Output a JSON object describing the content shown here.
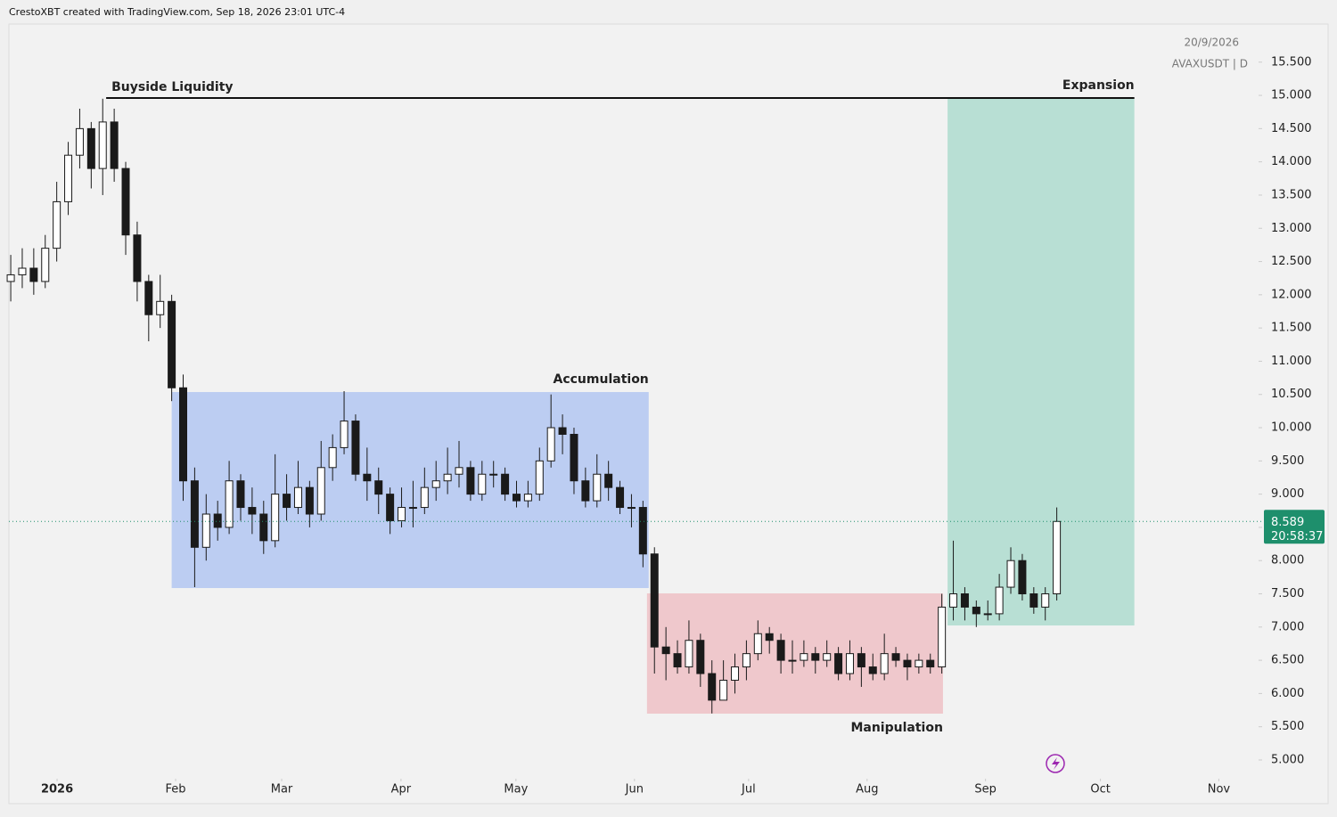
{
  "header": {
    "credit": "CrestoXBT created with TradingView.com, Sep 18, 2026 23:01 UTC-4",
    "date": "20/9/2026",
    "symbol": "AVAXUSDT | D"
  },
  "chart_data": {
    "type": "candlestick",
    "up_color": "#ffffff",
    "down_color": "#1a1a1a",
    "wick_color": "#1a1a1a",
    "xlim": [
      -0.16,
      108.4
    ],
    "xticks": [
      {
        "value": 4.03,
        "label": "2026"
      },
      {
        "value": 14.34,
        "label": "Feb"
      },
      {
        "value": 23.57,
        "label": "Mar"
      },
      {
        "value": 33.95,
        "label": "Apr"
      },
      {
        "value": 43.95,
        "label": "May"
      },
      {
        "value": 54.26,
        "label": "Jun"
      },
      {
        "value": 64.19,
        "label": "Jul"
      },
      {
        "value": 74.5,
        "label": "Aug"
      },
      {
        "value": 84.8,
        "label": "Sep"
      },
      {
        "value": 94.8,
        "label": "Oct"
      },
      {
        "value": 105.1,
        "label": "Nov"
      }
    ],
    "ylim": [
      4.705,
      16.06
    ],
    "yticks": [
      {
        "value": 5,
        "label": "5.000"
      },
      {
        "value": 5.5,
        "label": "5.500"
      },
      {
        "value": 6,
        "label": "6.000"
      },
      {
        "value": 6.5,
        "label": "6.500"
      },
      {
        "value": 7,
        "label": "7.000"
      },
      {
        "value": 7.5,
        "label": "7.500"
      },
      {
        "value": 8,
        "label": "8.000"
      },
      {
        "value": 8.5,
        "label": "8.500"
      },
      {
        "value": 9,
        "label": "9.000"
      },
      {
        "value": 9.5,
        "label": "9.500"
      },
      {
        "value": 10,
        "label": "10.000"
      },
      {
        "value": 10.5,
        "label": "10.500"
      },
      {
        "value": 11,
        "label": "11.000"
      },
      {
        "value": 11.5,
        "label": "11.500"
      },
      {
        "value": 12,
        "label": "12.000"
      },
      {
        "value": 12.5,
        "label": "12.500"
      },
      {
        "value": 13,
        "label": "13.000"
      },
      {
        "value": 13.5,
        "label": "13.500"
      },
      {
        "value": 14,
        "label": "14.000"
      },
      {
        "value": 14.5,
        "label": "14.500"
      },
      {
        "value": 15,
        "label": "15.000"
      },
      {
        "value": 15.5,
        "label": "15.500"
      }
    ],
    "ohlc": [
      [
        12.2,
        12.6,
        11.9,
        12.3
      ],
      [
        12.3,
        12.7,
        12.1,
        12.4
      ],
      [
        12.4,
        12.7,
        12.0,
        12.2
      ],
      [
        12.2,
        12.9,
        12.1,
        12.7
      ],
      [
        12.7,
        13.7,
        12.5,
        13.4
      ],
      [
        13.4,
        14.3,
        13.2,
        14.1
      ],
      [
        14.1,
        14.8,
        13.9,
        14.5
      ],
      [
        14.5,
        14.6,
        13.6,
        13.9
      ],
      [
        13.9,
        14.95,
        13.5,
        14.6
      ],
      [
        14.6,
        14.8,
        13.7,
        13.9
      ],
      [
        13.9,
        14.0,
        12.6,
        12.9
      ],
      [
        12.9,
        13.1,
        11.9,
        12.2
      ],
      [
        12.2,
        12.3,
        11.3,
        11.7
      ],
      [
        11.7,
        12.3,
        11.5,
        11.9
      ],
      [
        11.9,
        12.0,
        10.4,
        10.6
      ],
      [
        10.6,
        10.8,
        8.9,
        9.2
      ],
      [
        9.2,
        9.4,
        7.6,
        8.2
      ],
      [
        8.2,
        9.0,
        8.0,
        8.7
      ],
      [
        8.7,
        8.9,
        8.3,
        8.5
      ],
      [
        8.5,
        9.5,
        8.4,
        9.2
      ],
      [
        9.2,
        9.3,
        8.6,
        8.8
      ],
      [
        8.8,
        9.1,
        8.4,
        8.7
      ],
      [
        8.7,
        8.9,
        8.1,
        8.3
      ],
      [
        8.3,
        9.6,
        8.2,
        9.0
      ],
      [
        9.0,
        9.3,
        8.6,
        8.8
      ],
      [
        8.8,
        9.5,
        8.7,
        9.1
      ],
      [
        9.1,
        9.2,
        8.5,
        8.7
      ],
      [
        8.7,
        9.8,
        8.6,
        9.4
      ],
      [
        9.4,
        9.9,
        9.2,
        9.7
      ],
      [
        9.7,
        10.55,
        9.6,
        10.1
      ],
      [
        10.1,
        10.2,
        9.2,
        9.3
      ],
      [
        9.3,
        9.7,
        8.9,
        9.2
      ],
      [
        9.2,
        9.4,
        8.7,
        9.0
      ],
      [
        9.0,
        9.1,
        8.4,
        8.6
      ],
      [
        8.6,
        9.1,
        8.5,
        8.8
      ],
      [
        8.8,
        9.2,
        8.5,
        8.8
      ],
      [
        8.8,
        9.4,
        8.7,
        9.1
      ],
      [
        9.1,
        9.5,
        8.9,
        9.2
      ],
      [
        9.2,
        9.7,
        9.0,
        9.3
      ],
      [
        9.3,
        9.8,
        9.1,
        9.4
      ],
      [
        9.4,
        9.5,
        8.9,
        9.0
      ],
      [
        9.0,
        9.5,
        8.9,
        9.3
      ],
      [
        9.3,
        9.5,
        9.1,
        9.3
      ],
      [
        9.3,
        9.4,
        8.9,
        9.0
      ],
      [
        9.0,
        9.2,
        8.8,
        8.9
      ],
      [
        8.9,
        9.2,
        8.8,
        9.0
      ],
      [
        9.0,
        9.7,
        8.9,
        9.5
      ],
      [
        9.5,
        10.5,
        9.4,
        10.0
      ],
      [
        10.0,
        10.2,
        9.6,
        9.9
      ],
      [
        9.9,
        10.0,
        9.0,
        9.2
      ],
      [
        9.2,
        9.4,
        8.8,
        8.9
      ],
      [
        8.9,
        9.6,
        8.8,
        9.3
      ],
      [
        9.3,
        9.5,
        8.9,
        9.1
      ],
      [
        9.1,
        9.2,
        8.7,
        8.8
      ],
      [
        8.8,
        9.0,
        8.5,
        8.8
      ],
      [
        8.8,
        8.9,
        7.9,
        8.1
      ],
      [
        8.1,
        8.2,
        6.3,
        6.7
      ],
      [
        6.7,
        7.0,
        6.2,
        6.6
      ],
      [
        6.6,
        6.8,
        6.3,
        6.4
      ],
      [
        6.4,
        7.1,
        6.3,
        6.8
      ],
      [
        6.8,
        6.9,
        6.1,
        6.3
      ],
      [
        6.3,
        6.5,
        5.7,
        5.9
      ],
      [
        5.9,
        6.5,
        5.9,
        6.2
      ],
      [
        6.2,
        6.6,
        6.0,
        6.4
      ],
      [
        6.4,
        6.8,
        6.2,
        6.6
      ],
      [
        6.6,
        7.1,
        6.5,
        6.9
      ],
      [
        6.9,
        7.0,
        6.6,
        6.8
      ],
      [
        6.8,
        6.9,
        6.3,
        6.5
      ],
      [
        6.5,
        6.8,
        6.3,
        6.5
      ],
      [
        6.5,
        6.8,
        6.4,
        6.6
      ],
      [
        6.6,
        6.7,
        6.3,
        6.5
      ],
      [
        6.5,
        6.8,
        6.4,
        6.6
      ],
      [
        6.6,
        6.7,
        6.2,
        6.3
      ],
      [
        6.3,
        6.8,
        6.2,
        6.6
      ],
      [
        6.6,
        6.7,
        6.1,
        6.4
      ],
      [
        6.4,
        6.6,
        6.2,
        6.3
      ],
      [
        6.3,
        6.9,
        6.2,
        6.6
      ],
      [
        6.6,
        6.7,
        6.4,
        6.5
      ],
      [
        6.5,
        6.6,
        6.2,
        6.4
      ],
      [
        6.4,
        6.6,
        6.3,
        6.5
      ],
      [
        6.5,
        6.6,
        6.3,
        6.4
      ],
      [
        6.4,
        7.5,
        6.3,
        7.3
      ],
      [
        7.3,
        8.3,
        7.1,
        7.5
      ],
      [
        7.5,
        7.6,
        7.1,
        7.3
      ],
      [
        7.3,
        7.4,
        7.0,
        7.2
      ],
      [
        7.2,
        7.4,
        7.1,
        7.2
      ],
      [
        7.2,
        7.8,
        7.1,
        7.6
      ],
      [
        7.6,
        8.2,
        7.5,
        8.0
      ],
      [
        8.0,
        8.1,
        7.4,
        7.5
      ],
      [
        7.5,
        7.6,
        7.2,
        7.3
      ],
      [
        7.3,
        7.6,
        7.1,
        7.5
      ],
      [
        7.5,
        8.8,
        7.4,
        8.589
      ]
    ],
    "zones": [
      {
        "label": "Accumulation",
        "start": 14.0,
        "end": 55.5,
        "low": 7.587,
        "high": 10.536,
        "color": "#bccdf2",
        "label_color": "#1848cc",
        "label_pos": "above"
      },
      {
        "label": "Manipulation",
        "start": 55.35,
        "end": 81.1,
        "low": 5.697,
        "high": 7.507,
        "color": "#efc8cc",
        "label_color": "#e0203a",
        "label_pos": "below"
      },
      {
        "label": "Expansion",
        "start": 81.5,
        "end": 97.75,
        "low": 7.024,
        "high": 14.96,
        "color": "#b8dfd4",
        "label_color": "#0f9073",
        "label_pos": "above"
      }
    ],
    "liquidity": {
      "label": "Buyside Liquidity",
      "value": 14.96,
      "start": 8.3,
      "end": 97.75,
      "color": "#111111",
      "label_color": "#1848cc"
    },
    "countdown": "20:58:37",
    "price_label_color": "#1e8f6c"
  }
}
